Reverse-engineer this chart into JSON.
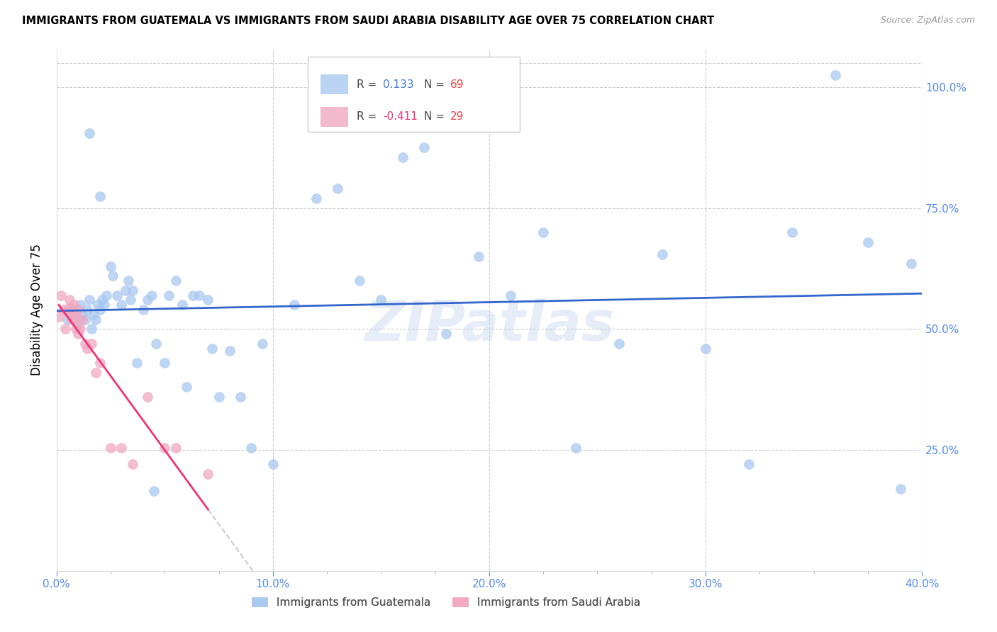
{
  "title": "IMMIGRANTS FROM GUATEMALA VS IMMIGRANTS FROM SAUDI ARABIA DISABILITY AGE OVER 75 CORRELATION CHART",
  "source": "Source: ZipAtlas.com",
  "ylabel": "Disability Age Over 75",
  "xlim": [
    0.0,
    0.4
  ],
  "ylim": [
    0.0,
    1.08
  ],
  "xtick_labels": [
    "0.0%",
    "",
    "",
    "",
    "10.0%",
    "",
    "",
    "",
    "",
    "20.0%",
    "",
    "",
    "",
    "",
    "30.0%",
    "",
    "",
    "",
    "",
    "40.0%"
  ],
  "ytick_labels": [
    "25.0%",
    "50.0%",
    "75.0%",
    "100.0%"
  ],
  "ytick_vals": [
    0.25,
    0.5,
    0.75,
    1.0
  ],
  "guatemala_color": "#a8c8f0",
  "saudi_color": "#f0a8c0",
  "trendline_guatemala_color": "#3366cc",
  "trendline_saudi_color": "#ee3377",
  "trendline_saudi_dashed_color": "#cccccc",
  "watermark": "ZIPatlas",
  "guatemala_x": [
    0.005,
    0.007,
    0.009,
    0.01,
    0.011,
    0.012,
    0.013,
    0.014,
    0.015,
    0.016,
    0.017,
    0.018,
    0.019,
    0.02,
    0.021,
    0.022,
    0.023,
    0.025,
    0.026,
    0.028,
    0.03,
    0.032,
    0.033,
    0.034,
    0.035,
    0.037,
    0.04,
    0.042,
    0.044,
    0.046,
    0.05,
    0.052,
    0.055,
    0.058,
    0.06,
    0.063,
    0.066,
    0.07,
    0.072,
    0.075,
    0.08,
    0.085,
    0.09,
    0.095,
    0.1,
    0.11,
    0.12,
    0.13,
    0.14,
    0.15,
    0.16,
    0.17,
    0.18,
    0.195,
    0.21,
    0.225,
    0.24,
    0.26,
    0.28,
    0.3,
    0.32,
    0.34,
    0.36,
    0.375,
    0.39,
    0.395,
    0.015,
    0.02,
    0.045
  ],
  "guatemala_y": [
    0.52,
    0.54,
    0.53,
    0.51,
    0.55,
    0.53,
    0.52,
    0.54,
    0.56,
    0.5,
    0.53,
    0.52,
    0.55,
    0.54,
    0.56,
    0.55,
    0.57,
    0.63,
    0.61,
    0.57,
    0.55,
    0.58,
    0.6,
    0.56,
    0.58,
    0.43,
    0.54,
    0.56,
    0.57,
    0.47,
    0.43,
    0.57,
    0.6,
    0.55,
    0.38,
    0.57,
    0.57,
    0.56,
    0.46,
    0.36,
    0.455,
    0.36,
    0.255,
    0.47,
    0.22,
    0.55,
    0.77,
    0.79,
    0.6,
    0.56,
    0.855,
    0.875,
    0.49,
    0.65,
    0.57,
    0.7,
    0.255,
    0.47,
    0.655,
    0.46,
    0.22,
    0.7,
    1.025,
    0.68,
    0.17,
    0.635,
    0.905,
    0.775,
    0.165
  ],
  "saudi_x": [
    0.001,
    0.002,
    0.003,
    0.004,
    0.005,
    0.006,
    0.006,
    0.007,
    0.007,
    0.008,
    0.008,
    0.009,
    0.009,
    0.01,
    0.01,
    0.011,
    0.012,
    0.013,
    0.014,
    0.016,
    0.018,
    0.02,
    0.025,
    0.03,
    0.035,
    0.042,
    0.05,
    0.055,
    0.07
  ],
  "saudi_y": [
    0.525,
    0.57,
    0.54,
    0.5,
    0.535,
    0.545,
    0.56,
    0.52,
    0.54,
    0.53,
    0.55,
    0.5,
    0.52,
    0.54,
    0.49,
    0.5,
    0.52,
    0.47,
    0.46,
    0.47,
    0.41,
    0.43,
    0.255,
    0.255,
    0.22,
    0.36,
    0.255,
    0.255,
    0.2
  ]
}
